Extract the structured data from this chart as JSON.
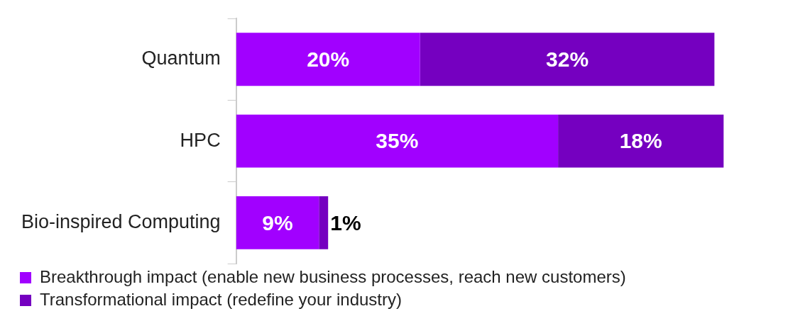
{
  "chart_data": {
    "type": "bar",
    "orientation": "horizontal",
    "stacked": true,
    "categories": [
      "Quantum",
      "HPC",
      "Bio-inspired Computing"
    ],
    "series": [
      {
        "name": "Breakthrough impact (enable new business processes, reach new customers)",
        "color": "#a100ff",
        "values": [
          20,
          35,
          9
        ],
        "value_labels": [
          "20%",
          "35%",
          "9%"
        ]
      },
      {
        "name": "Transformational impact (redefine your industry)",
        "color": "#7500c0",
        "values": [
          32,
          18,
          1
        ],
        "value_labels": [
          "32%",
          "18%",
          "1%"
        ]
      }
    ],
    "legend": "bottom left",
    "tick_labels": "y"
  }
}
